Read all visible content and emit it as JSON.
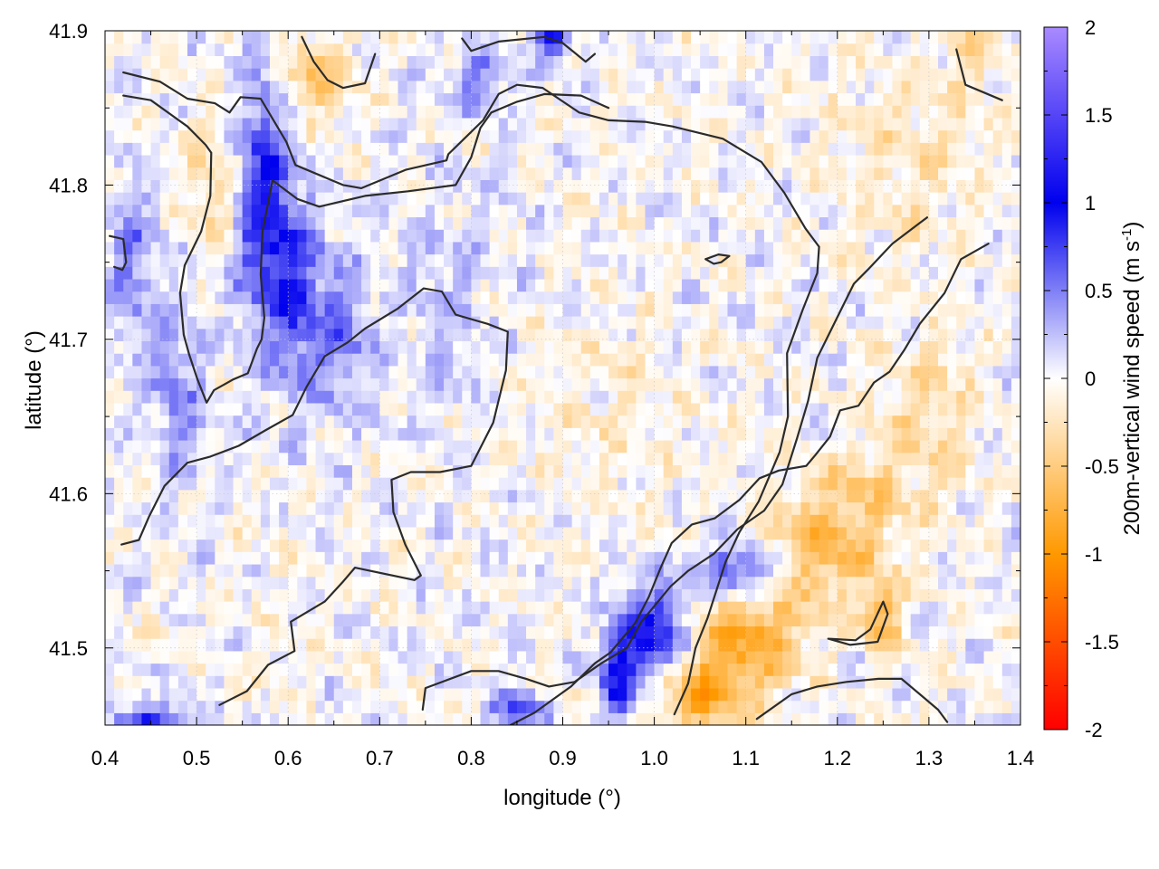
{
  "chart_data": {
    "type": "heatmap",
    "title": "",
    "xlabel": "longitude (°)",
    "ylabel": "latitude (°)",
    "colorbar_label": "200m-vertical wind speed (m s-1)",
    "colorbar_label_main": "200m-vertical wind speed (m s",
    "colorbar_label_sup": "-1",
    "colorbar_label_end": ")",
    "xlim": [
      0.4,
      1.4
    ],
    "ylim": [
      41.45,
      41.9
    ],
    "zlim": [
      -2,
      2
    ],
    "grid": true,
    "x_ticks": [
      {
        "value": 0.4,
        "label": "0.4"
      },
      {
        "value": 0.5,
        "label": "0.5"
      },
      {
        "value": 0.6,
        "label": "0.6"
      },
      {
        "value": 0.7,
        "label": "0.7"
      },
      {
        "value": 0.8,
        "label": "0.8"
      },
      {
        "value": 0.9,
        "label": "0.9"
      },
      {
        "value": 1.0,
        "label": "1.0"
      },
      {
        "value": 1.1,
        "label": "1.1"
      },
      {
        "value": 1.2,
        "label": "1.2"
      },
      {
        "value": 1.3,
        "label": "1.3"
      },
      {
        "value": 1.4,
        "label": "1.4"
      }
    ],
    "y_ticks": [
      {
        "value": 41.5,
        "label": "41.5"
      },
      {
        "value": 41.6,
        "label": "41.6"
      },
      {
        "value": 41.7,
        "label": "41.7"
      },
      {
        "value": 41.8,
        "label": "41.8"
      },
      {
        "value": 41.9,
        "label": "41.9"
      }
    ],
    "colorbar_ticks": [
      {
        "value": 2,
        "label": "2"
      },
      {
        "value": 1.5,
        "label": "1.5"
      },
      {
        "value": 1,
        "label": "1"
      },
      {
        "value": 0.5,
        "label": "0.5"
      },
      {
        "value": 0,
        "label": "0"
      },
      {
        "value": -0.5,
        "label": "-0.5"
      },
      {
        "value": -1,
        "label": "-1"
      },
      {
        "value": -1.5,
        "label": "-1.5"
      },
      {
        "value": -2,
        "label": "-2"
      }
    ],
    "colormap": [
      {
        "value": -2,
        "color": "#ff0000"
      },
      {
        "value": -1,
        "color": "#ff9900"
      },
      {
        "value": 0,
        "color": "#ffffff"
      },
      {
        "value": 1,
        "color": "#0000ee"
      },
      {
        "value": 2,
        "color": "#a98aff"
      }
    ],
    "wind_features": [
      {
        "lon": 0.57,
        "lat": 41.79,
        "value": 1.0,
        "rlon": 0.03,
        "rlat": 0.08
      },
      {
        "lon": 0.61,
        "lat": 41.73,
        "value": 0.7,
        "rlon": 0.03,
        "rlat": 0.06
      },
      {
        "lon": 0.66,
        "lat": 41.7,
        "value": 0.5,
        "rlon": 0.03,
        "rlat": 0.05
      },
      {
        "lon": 0.53,
        "lat": 41.8,
        "value": -0.35,
        "rlon": 0.04,
        "rlat": 0.05
      },
      {
        "lon": 0.63,
        "lat": 41.87,
        "value": -0.55,
        "rlon": 0.04,
        "rlat": 0.025
      },
      {
        "lon": 0.89,
        "lat": 41.895,
        "value": 1.1,
        "rlon": 0.02,
        "rlat": 0.012
      },
      {
        "lon": 0.81,
        "lat": 41.87,
        "value": 0.5,
        "rlon": 0.03,
        "rlat": 0.02
      },
      {
        "lon": 0.43,
        "lat": 41.75,
        "value": 0.45,
        "rlon": 0.03,
        "rlat": 0.06
      },
      {
        "lon": 0.48,
        "lat": 41.66,
        "value": 0.4,
        "rlon": 0.03,
        "rlat": 0.06
      },
      {
        "lon": 1.1,
        "lat": 41.55,
        "value": 1.1,
        "rlon": 0.05,
        "rlat": 0.02
      },
      {
        "lon": 1.0,
        "lat": 41.51,
        "value": 1.0,
        "rlon": 0.04,
        "rlat": 0.03
      },
      {
        "lon": 0.96,
        "lat": 41.48,
        "value": 0.8,
        "rlon": 0.02,
        "rlat": 0.03
      },
      {
        "lon": 1.1,
        "lat": 41.51,
        "value": -0.8,
        "rlon": 0.06,
        "rlat": 0.04
      },
      {
        "lon": 1.17,
        "lat": 41.56,
        "value": -0.7,
        "rlon": 0.07,
        "rlat": 0.03
      },
      {
        "lon": 1.05,
        "lat": 41.47,
        "value": -0.75,
        "rlon": 0.05,
        "rlat": 0.025
      },
      {
        "lon": 1.25,
        "lat": 41.52,
        "value": -0.7,
        "rlon": 0.02,
        "rlat": 0.025
      },
      {
        "lon": 1.22,
        "lat": 41.6,
        "value": -0.4,
        "rlon": 0.06,
        "rlat": 0.03
      },
      {
        "lon": 1.3,
        "lat": 41.65,
        "value": -0.35,
        "rlon": 0.05,
        "rlat": 0.05
      },
      {
        "lon": 1.28,
        "lat": 41.82,
        "value": -0.25,
        "rlon": 0.08,
        "rlat": 0.06
      },
      {
        "lon": 0.85,
        "lat": 41.46,
        "value": 0.6,
        "rlon": 0.03,
        "rlat": 0.015
      },
      {
        "lon": 0.45,
        "lat": 41.455,
        "value": 0.8,
        "rlon": 0.04,
        "rlat": 0.01
      },
      {
        "lon": 0.95,
        "lat": 41.65,
        "value": -0.15,
        "rlon": 0.08,
        "rlat": 0.06
      },
      {
        "lon": 1.35,
        "lat": 41.88,
        "value": -0.3,
        "rlon": 0.03,
        "rlat": 0.02
      },
      {
        "lon": 0.77,
        "lat": 41.72,
        "value": 0.2,
        "rlon": 0.06,
        "rlat": 0.08
      }
    ],
    "contours": [
      [
        [
          0.42,
          41.873
        ],
        [
          0.46,
          41.867
        ],
        [
          0.49,
          41.856
        ],
        [
          0.52,
          41.853
        ],
        [
          0.536,
          41.847
        ],
        [
          0.548,
          41.857
        ],
        [
          0.57,
          41.856
        ],
        [
          0.598,
          41.828
        ],
        [
          0.608,
          41.813
        ],
        [
          0.66,
          41.8
        ],
        [
          0.68,
          41.798
        ],
        [
          0.729,
          41.81
        ],
        [
          0.773,
          41.816
        ],
        [
          0.775,
          41.82
        ],
        [
          0.813,
          41.842
        ],
        [
          0.83,
          41.859
        ],
        [
          0.85,
          41.865
        ],
        [
          0.878,
          41.863
        ],
        [
          0.918,
          41.847
        ],
        [
          0.95,
          41.842
        ],
        [
          0.99,
          41.841
        ],
        [
          1.02,
          41.838
        ],
        [
          1.075,
          41.83
        ],
        [
          1.117,
          41.815
        ],
        [
          1.142,
          41.795
        ],
        [
          1.165,
          41.772
        ],
        [
          1.18,
          41.76
        ],
        [
          1.178,
          41.743
        ],
        [
          1.162,
          41.719
        ],
        [
          1.145,
          41.691
        ],
        [
          1.146,
          41.65
        ],
        [
          1.137,
          41.627
        ],
        [
          1.114,
          41.595
        ],
        [
          1.093,
          41.575
        ],
        [
          1.078,
          41.556
        ],
        [
          1.058,
          41.519
        ],
        [
          1.045,
          41.5
        ],
        [
          1.037,
          41.477
        ],
        [
          1.022,
          41.457
        ]
      ],
      [
        [
          0.42,
          41.858
        ],
        [
          0.45,
          41.855
        ],
        [
          0.49,
          41.838
        ],
        [
          0.51,
          41.826
        ],
        [
          0.516,
          41.821
        ],
        [
          0.515,
          41.793
        ],
        [
          0.505,
          41.77
        ],
        [
          0.487,
          41.748
        ],
        [
          0.482,
          41.73
        ],
        [
          0.486,
          41.703
        ],
        [
          0.492,
          41.69
        ],
        [
          0.501,
          41.674
        ],
        [
          0.511,
          41.659
        ],
        [
          0.519,
          41.667
        ],
        [
          0.54,
          41.674
        ],
        [
          0.556,
          41.678
        ],
        [
          0.566,
          41.694
        ],
        [
          0.571,
          41.7
        ],
        [
          0.574,
          41.714
        ],
        [
          0.57,
          41.742
        ],
        [
          0.572,
          41.77
        ],
        [
          0.583,
          41.803
        ],
        [
          0.61,
          41.791
        ],
        [
          0.634,
          41.786
        ],
        [
          0.684,
          41.793
        ],
        [
          0.731,
          41.796
        ],
        [
          0.783,
          41.8
        ],
        [
          0.8,
          41.818
        ],
        [
          0.81,
          41.837
        ],
        [
          0.822,
          41.847
        ],
        [
          0.85,
          41.854
        ],
        [
          0.88,
          41.859
        ],
        [
          0.92,
          41.858
        ],
        [
          0.95,
          41.85
        ]
      ],
      [
        [
          0.418,
          41.567
        ],
        [
          0.437,
          41.57
        ],
        [
          0.448,
          41.585
        ],
        [
          0.465,
          41.605
        ],
        [
          0.49,
          41.62
        ],
        [
          0.515,
          41.624
        ],
        [
          0.546,
          41.631
        ],
        [
          0.575,
          41.641
        ],
        [
          0.605,
          41.651
        ],
        [
          0.62,
          41.669
        ],
        [
          0.64,
          41.689
        ],
        [
          0.665,
          41.698
        ],
        [
          0.684,
          41.707
        ],
        [
          0.72,
          41.72
        ],
        [
          0.748,
          41.733
        ],
        [
          0.768,
          41.731
        ],
        [
          0.783,
          41.716
        ],
        [
          0.818,
          41.71
        ],
        [
          0.84,
          41.705
        ],
        [
          0.838,
          41.68
        ],
        [
          0.824,
          41.646
        ],
        [
          0.8,
          41.618
        ],
        [
          0.766,
          41.614
        ],
        [
          0.734,
          41.614
        ],
        [
          0.713,
          41.609
        ],
        [
          0.715,
          41.588
        ],
        [
          0.728,
          41.567
        ],
        [
          0.745,
          41.547
        ],
        [
          0.738,
          41.544
        ],
        [
          0.673,
          41.552
        ],
        [
          0.66,
          41.543
        ],
        [
          0.64,
          41.53
        ],
        [
          0.603,
          41.517
        ],
        [
          0.607,
          41.498
        ],
        [
          0.578,
          41.489
        ],
        [
          0.555,
          41.472
        ],
        [
          0.525,
          41.463
        ]
      ],
      [
        [
          0.747,
          41.46
        ],
        [
          0.75,
          41.474
        ],
        [
          0.8,
          41.485
        ],
        [
          0.83,
          41.485
        ],
        [
          0.86,
          41.48
        ],
        [
          0.885,
          41.475
        ],
        [
          0.913,
          41.478
        ],
        [
          0.942,
          41.49
        ],
        [
          0.97,
          41.5
        ],
        [
          0.986,
          41.517
        ],
        [
          1.018,
          41.54
        ],
        [
          1.037,
          41.55
        ],
        [
          1.065,
          41.561
        ],
        [
          1.091,
          41.577
        ],
        [
          1.12,
          41.589
        ],
        [
          1.14,
          41.606
        ],
        [
          1.156,
          41.636
        ],
        [
          1.168,
          41.66
        ],
        [
          1.178,
          41.688
        ],
        [
          1.198,
          41.712
        ],
        [
          1.218,
          41.736
        ],
        [
          1.233,
          41.745
        ],
        [
          1.26,
          41.762
        ],
        [
          1.298,
          41.779
        ]
      ],
      [
        [
          0.843,
          41.45
        ],
        [
          0.869,
          41.458
        ],
        [
          0.909,
          41.475
        ],
        [
          0.935,
          41.49
        ],
        [
          0.952,
          41.497
        ],
        [
          0.979,
          41.516
        ],
        [
          0.994,
          41.533
        ],
        [
          1.007,
          41.552
        ],
        [
          1.019,
          41.568
        ],
        [
          1.041,
          41.58
        ],
        [
          1.066,
          41.584
        ],
        [
          1.093,
          41.596
        ],
        [
          1.115,
          41.61
        ],
        [
          1.136,
          41.615
        ],
        [
          1.166,
          41.618
        ],
        [
          1.176,
          41.625
        ],
        [
          1.192,
          41.637
        ],
        [
          1.203,
          41.654
        ],
        [
          1.223,
          41.657
        ],
        [
          1.24,
          41.672
        ],
        [
          1.257,
          41.679
        ],
        [
          1.273,
          41.693
        ],
        [
          1.29,
          41.71
        ],
        [
          1.317,
          41.73
        ],
        [
          1.335,
          41.752
        ],
        [
          1.365,
          41.762
        ]
      ],
      [
        [
          1.056,
          41.752
        ],
        [
          1.07,
          41.755
        ],
        [
          1.082,
          41.754
        ],
        [
          1.073,
          41.75
        ],
        [
          1.065,
          41.749
        ],
        [
          1.056,
          41.752
        ]
      ],
      [
        [
          1.19,
          41.506
        ],
        [
          1.214,
          41.502
        ],
        [
          1.244,
          41.504
        ],
        [
          1.255,
          41.522
        ],
        [
          1.25,
          41.53
        ],
        [
          1.236,
          41.512
        ],
        [
          1.22,
          41.505
        ],
        [
          1.19,
          41.506
        ]
      ],
      [
        [
          1.112,
          41.454
        ],
        [
          1.15,
          41.47
        ],
        [
          1.178,
          41.475
        ],
        [
          1.21,
          41.478
        ],
        [
          1.245,
          41.48
        ],
        [
          1.27,
          41.48
        ],
        [
          1.29,
          41.47
        ],
        [
          1.31,
          41.46
        ],
        [
          1.32,
          41.452
        ]
      ],
      [
        [
          0.405,
          41.767
        ],
        [
          0.42,
          41.765
        ],
        [
          0.423,
          41.75
        ],
        [
          0.419,
          41.745
        ],
        [
          0.41,
          41.747
        ]
      ],
      [
        [
          1.33,
          41.888
        ],
        [
          1.34,
          41.865
        ],
        [
          1.36,
          41.86
        ],
        [
          1.38,
          41.855
        ]
      ],
      [
        [
          0.615,
          41.896
        ],
        [
          0.628,
          41.88
        ],
        [
          0.643,
          41.868
        ],
        [
          0.66,
          41.863
        ],
        [
          0.684,
          41.866
        ],
        [
          0.695,
          41.885
        ]
      ],
      [
        [
          0.79,
          41.895
        ],
        [
          0.8,
          41.887
        ],
        [
          0.83,
          41.893
        ],
        [
          0.88,
          41.896
        ],
        [
          0.9,
          41.892
        ],
        [
          0.925,
          41.88
        ],
        [
          0.935,
          41.885
        ]
      ]
    ]
  }
}
